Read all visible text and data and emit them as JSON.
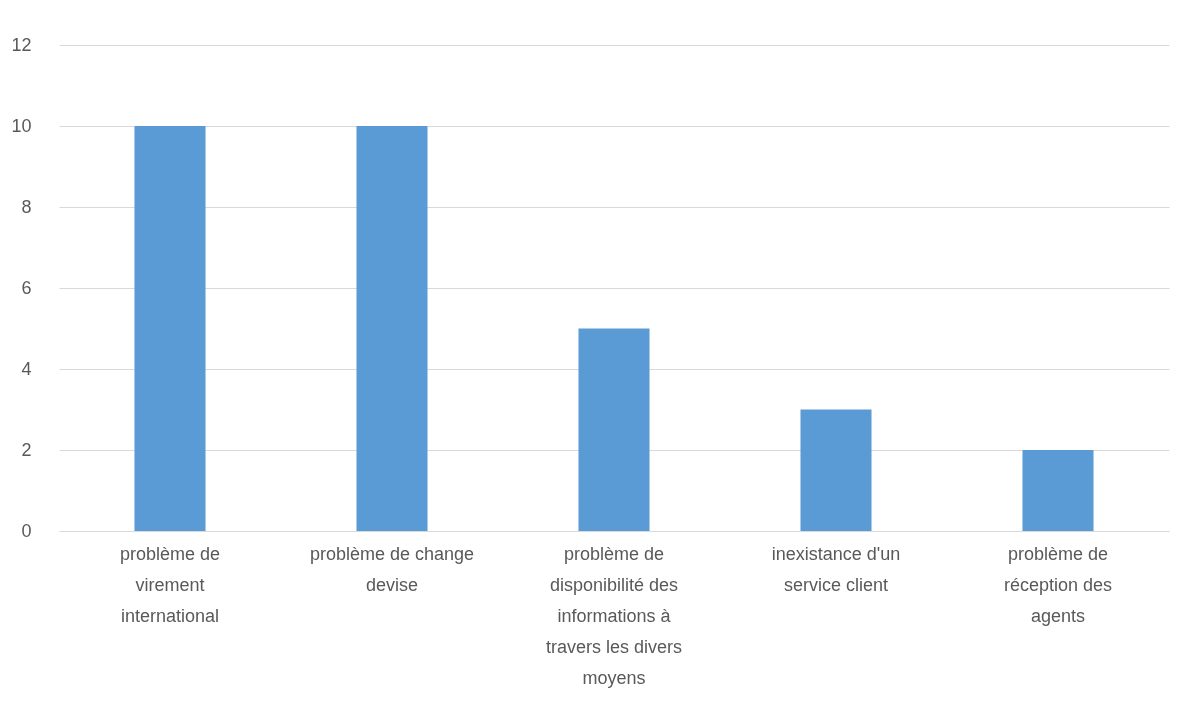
{
  "chart_data": {
    "type": "bar",
    "categories": [
      "problème de virement international",
      "problème de change devise",
      "problème de disponibilité des informations à travers les divers moyens",
      "inexistance d'un service client",
      "problème de réception des agents"
    ],
    "values": [
      10,
      10,
      5,
      3,
      2
    ],
    "color": "#5b9bd5",
    "ylim": [
      0,
      12
    ],
    "yticks": [
      0,
      2,
      4,
      6,
      8,
      10,
      12
    ],
    "grid": "y"
  }
}
